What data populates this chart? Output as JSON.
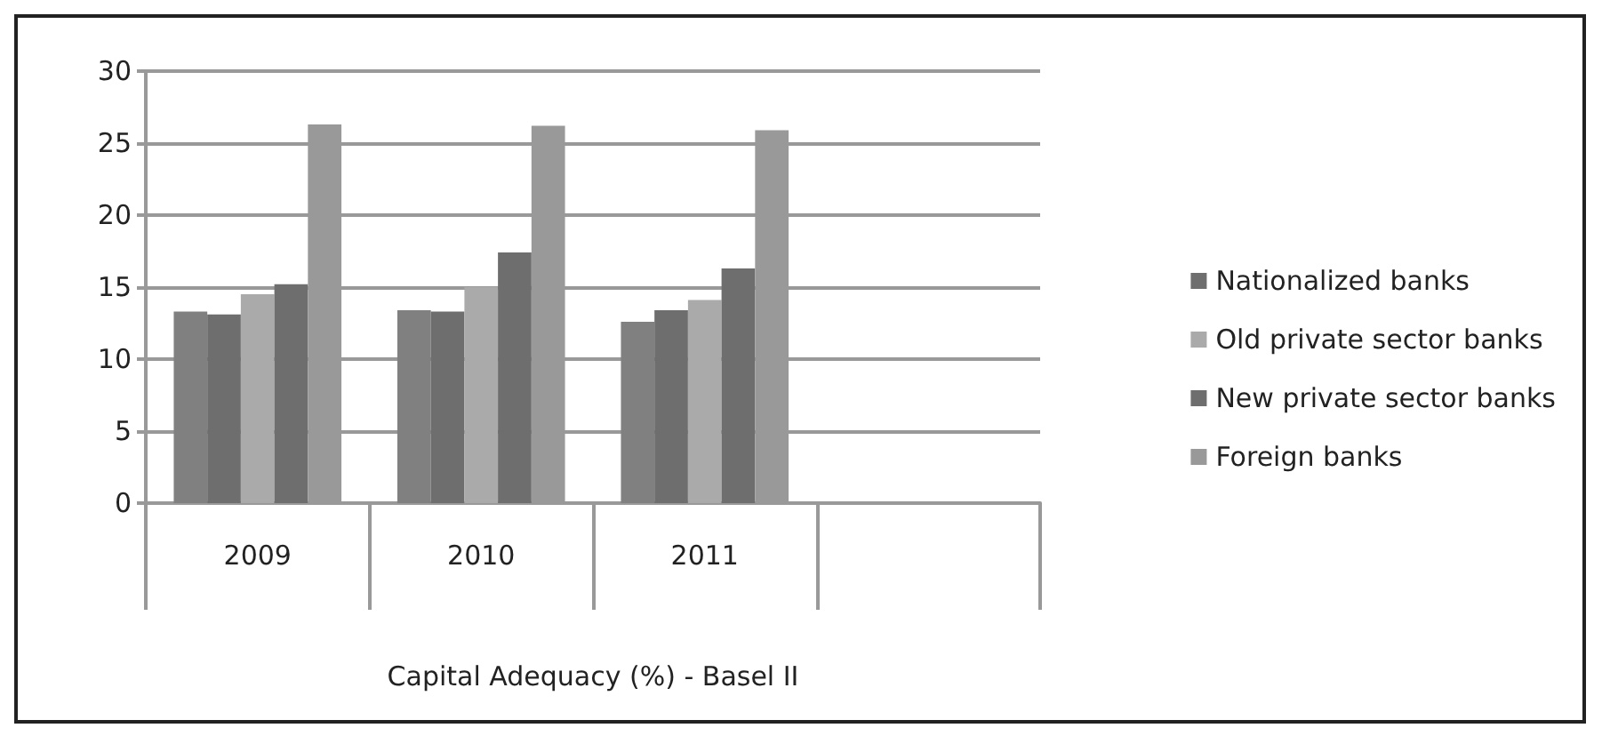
{
  "chart_data": {
    "type": "bar",
    "xlabel": "Capital Adequacy (%) - Basel II",
    "categories": [
      "2009",
      "2010",
      "2011",
      null
    ],
    "series": [
      {
        "color": "#808080",
        "values": [
          13.3,
          13.4,
          12.6,
          null
        ]
      },
      {
        "name": "Nationalized banks",
        "color": "#6e6e6e",
        "values": [
          13.1,
          13.3,
          13.4,
          null
        ]
      },
      {
        "name": "Old private sector banks",
        "color": "#aaaaaa",
        "values": [
          14.5,
          15.0,
          14.1,
          null
        ]
      },
      {
        "name": "New private sector banks",
        "color": "#6e6e6e",
        "values": [
          15.2,
          17.4,
          16.3,
          null
        ]
      },
      {
        "name": "Foreign banks",
        "color": "#999999",
        "values": [
          26.3,
          26.2,
          25.9,
          null
        ]
      }
    ],
    "ylim": [
      0,
      30
    ],
    "yticks": [
      0,
      5,
      10,
      15,
      20,
      25,
      30
    ],
    "grid": "y",
    "legend": "right"
  }
}
